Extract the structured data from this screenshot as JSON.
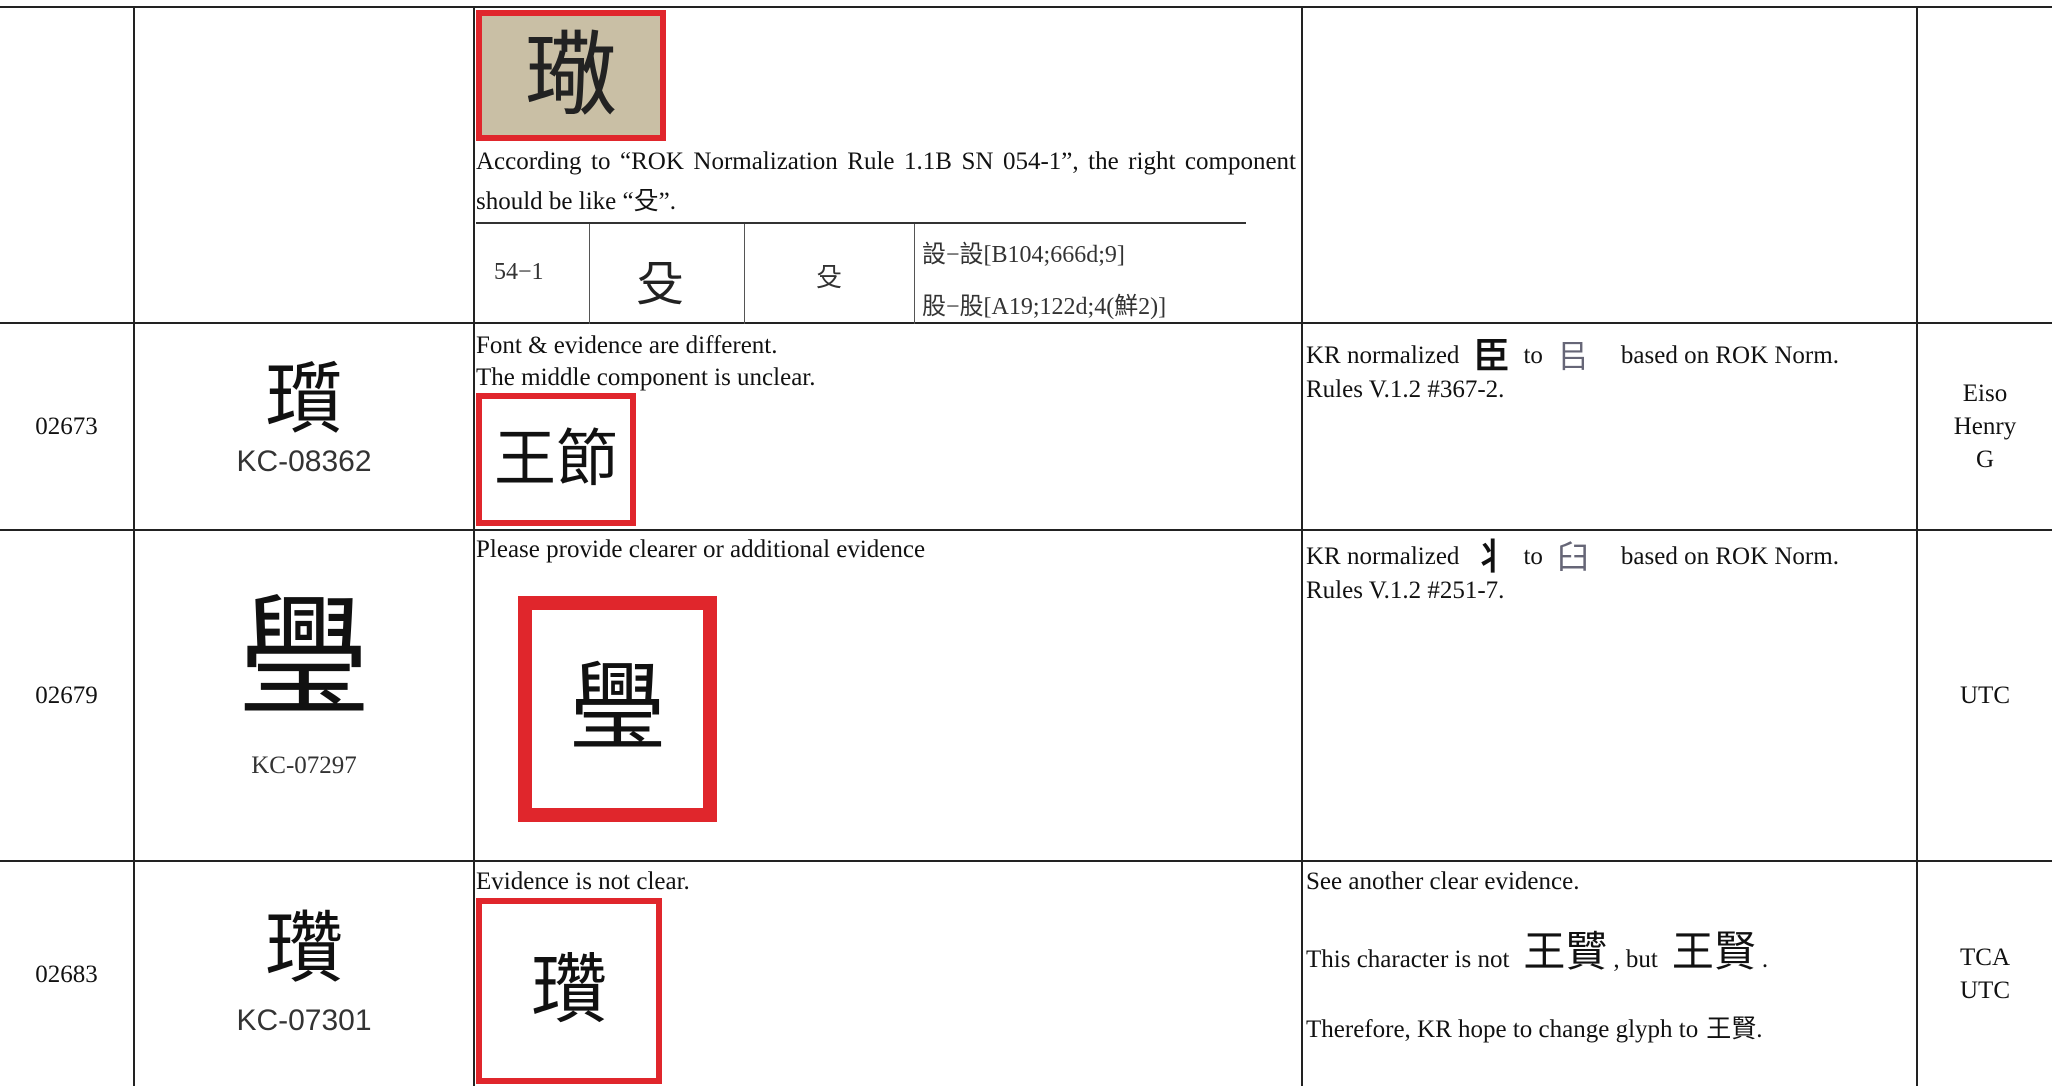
{
  "rows": [
    {
      "evidence_glyph": "璥",
      "comment": "According to “ROK Normalization Rule 1.1B SN 054-1”, the right component should be like “殳”.",
      "rule_table": {
        "number": "54−1",
        "form": "殳",
        "normal": "殳",
        "examples": [
          "設−設[B104;666d;9]",
          "股−股[A19;122d;4(鮮2)]"
        ]
      }
    },
    {
      "id": "02673",
      "glyph": "瓆",
      "code": "KC-08362",
      "comment": [
        "Font & evidence are different.",
        "The middle component is unclear."
      ],
      "evidence_glyph": "王節",
      "response": {
        "lead": "KR normalized",
        "from": "臣",
        "to_word": "to",
        "to": "㠯",
        "rest": "based on ROK Norm.",
        "rule": "Rules V.1.2 #367-2."
      },
      "reviewers": [
        "Eiso",
        "Henry",
        "G"
      ]
    },
    {
      "id": "02679",
      "glyph": "璺",
      "code": "KC-07297",
      "comment": [
        "Please provide clearer or additional evidence"
      ],
      "evidence_glyph": "璺",
      "response": {
        "lead": "KR normalized",
        "from": "⺦",
        "to_word": "to",
        "to": "臼",
        "rest": "based on ROK Norm.",
        "rule": "Rules V.1.2 #251-7."
      },
      "reviewers": [
        "UTC"
      ]
    },
    {
      "id": "02683",
      "glyph": "瓚",
      "code": "KC-07301",
      "comment": [
        "Evidence is not clear."
      ],
      "evidence_glyph": "瓚",
      "notes": {
        "first": "See another clear evidence.",
        "second": {
          "lead": "This character is not",
          "wrong": "王贒",
          "mid": ", but",
          "right": "王賢",
          "end": "."
        },
        "third": {
          "lead": "Therefore, KR hope to change glyph to",
          "glyph": "王賢",
          "end": "."
        }
      },
      "reviewers": [
        "TCA",
        "UTC"
      ]
    }
  ]
}
